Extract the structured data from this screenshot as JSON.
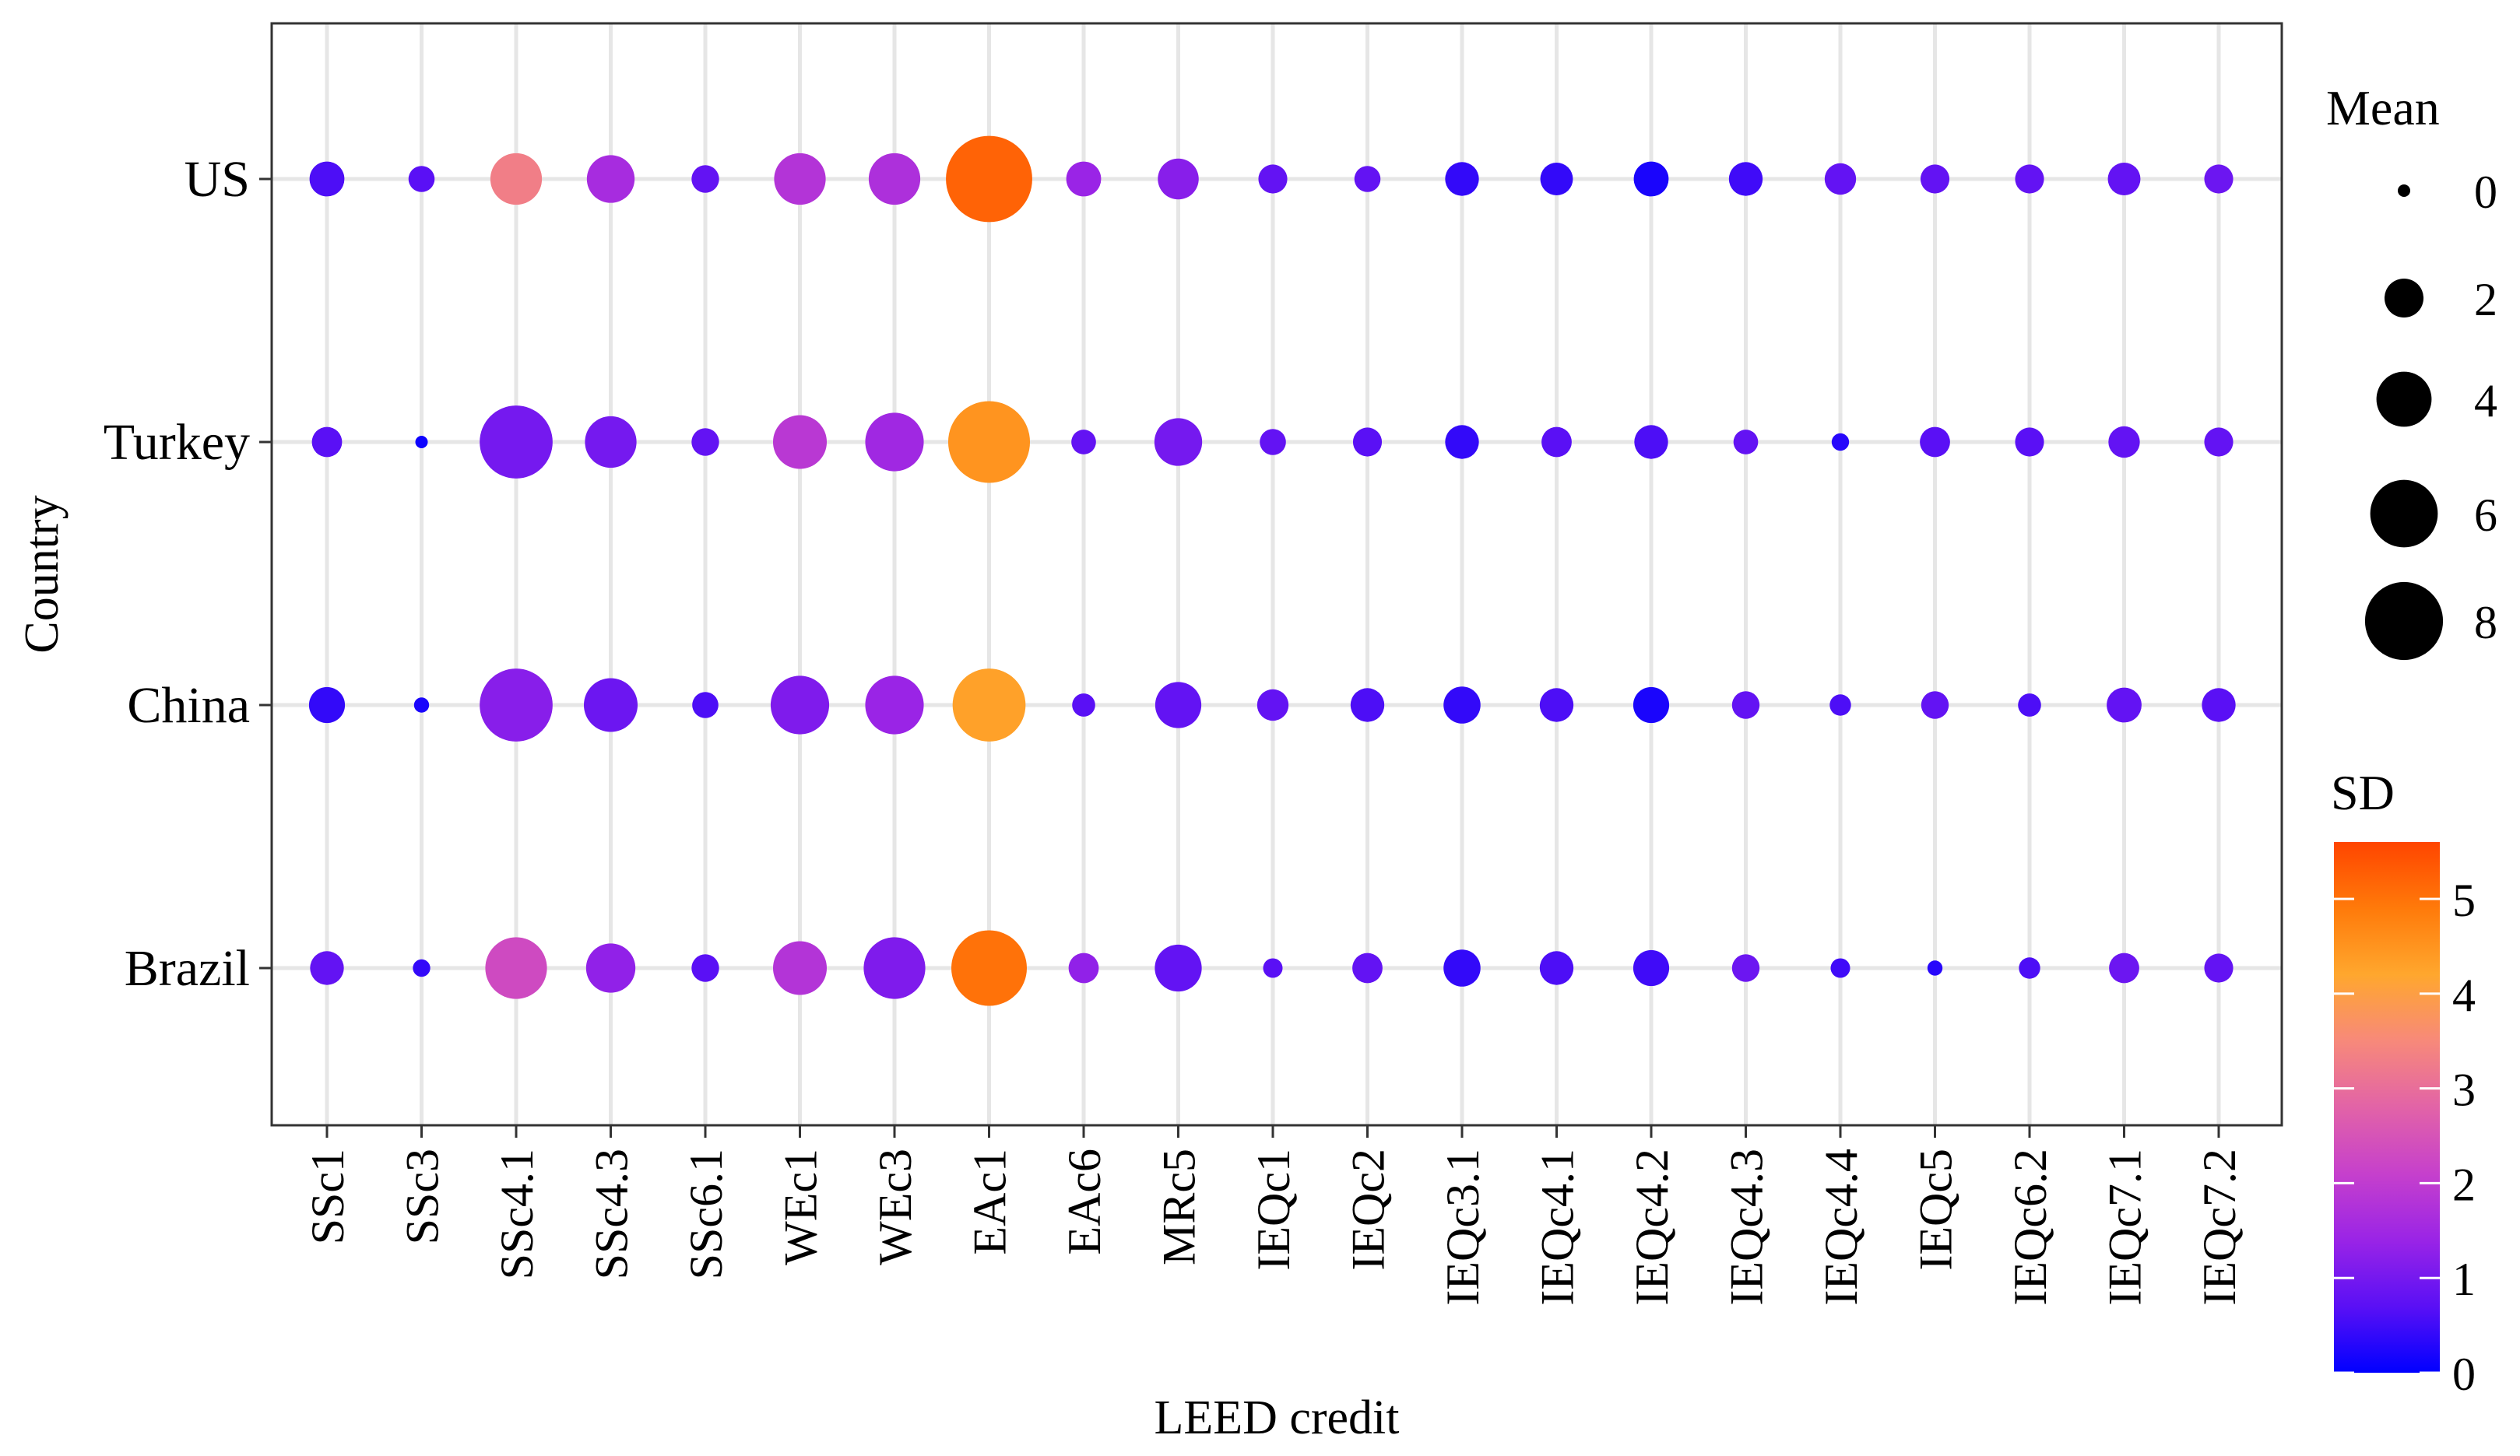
{
  "chart_data": {
    "type": "scatter",
    "subtype": "dot-plot",
    "title": "",
    "xlabel": "LEED credit",
    "ylabel": "Country",
    "categories": [
      "SSc1",
      "SSc3",
      "SSc4.1",
      "SSc4.3",
      "SSc6.1",
      "WEc1",
      "WEc3",
      "EAc1",
      "EAc6",
      "MRc5",
      "IEQc1",
      "IEQc2",
      "IEQc3.1",
      "IEQc4.1",
      "IEQc4.2",
      "IEQc4.3",
      "IEQc4.4",
      "IEQc5",
      "IEQc6.2",
      "IEQc7.1",
      "IEQc7.2"
    ],
    "countries": [
      "US",
      "Turkey",
      "China",
      "Brazil"
    ],
    "grid": true,
    "series": [
      {
        "name": "US",
        "mean": [
          1.6,
          0.9,
          3.5,
          3.0,
          1.0,
          3.5,
          3.5,
          9.8,
          1.6,
          2.2,
          1.1,
          0.9,
          1.5,
          1.4,
          1.6,
          1.5,
          1.3,
          1.1,
          1.1,
          1.4,
          1.1
        ],
        "sd": [
          0.6,
          0.7,
          3.3,
          1.6,
          0.8,
          1.8,
          1.7,
          5.2,
          1.4,
          1.2,
          0.8,
          0.8,
          0.4,
          0.4,
          0.2,
          0.5,
          0.8,
          0.8,
          0.8,
          0.8,
          0.9
        ]
      },
      {
        "name": "Turkey",
        "mean": [
          1.2,
          0.2,
          7.0,
          3.5,
          1.0,
          3.8,
          4.5,
          8.8,
          0.8,
          3.0,
          0.9,
          1.1,
          1.5,
          1.2,
          1.5,
          0.8,
          0.4,
          1.2,
          1.1,
          1.3,
          1.1
        ],
        "sd": [
          0.7,
          0.1,
          1.0,
          1.0,
          0.8,
          1.9,
          1.5,
          4.5,
          0.8,
          1.0,
          0.8,
          0.7,
          0.4,
          0.7,
          0.6,
          0.8,
          0.3,
          0.7,
          0.7,
          0.8,
          0.8
        ]
      },
      {
        "name": "China",
        "mean": [
          1.7,
          0.3,
          7.0,
          3.8,
          0.9,
          4.5,
          4.5,
          7.0,
          0.7,
          2.8,
          1.3,
          1.5,
          1.8,
          1.5,
          1.7,
          1.0,
          0.6,
          1.0,
          0.7,
          1.6,
          1.5
        ],
        "sd": [
          0.4,
          0.2,
          1.2,
          0.9,
          0.6,
          1.1,
          1.4,
          4.3,
          0.7,
          0.8,
          0.8,
          0.6,
          0.4,
          0.6,
          0.2,
          0.8,
          0.6,
          0.8,
          0.6,
          0.8,
          0.7
        ]
      },
      {
        "name": "Brazil",
        "mean": [
          1.5,
          0.4,
          5.0,
          3.2,
          1.0,
          3.8,
          5.0,
          7.5,
          1.2,
          2.9,
          0.5,
          1.2,
          1.8,
          1.5,
          1.7,
          1.0,
          0.5,
          0.3,
          0.6,
          1.2,
          1.1
        ],
        "sd": [
          0.8,
          0.4,
          2.3,
          1.3,
          0.7,
          1.8,
          1.1,
          5.0,
          1.3,
          0.8,
          0.7,
          0.8,
          0.4,
          0.6,
          0.5,
          0.9,
          0.5,
          0.3,
          0.6,
          0.9,
          0.8
        ]
      }
    ],
    "size_legend": {
      "title": "Mean",
      "values": [
        0,
        2,
        4,
        6,
        8
      ]
    },
    "color_legend": {
      "title": "SD",
      "range": [
        0,
        5.6
      ],
      "ticks": [
        0,
        1,
        2,
        3,
        4,
        5
      ],
      "colors": [
        "#0000ff",
        "#5a10f5",
        "#9a24e6",
        "#c640cc",
        "#e263a7",
        "#f7897a",
        "#ffa72e",
        "#ff7a0a",
        "#ff4500"
      ]
    }
  }
}
